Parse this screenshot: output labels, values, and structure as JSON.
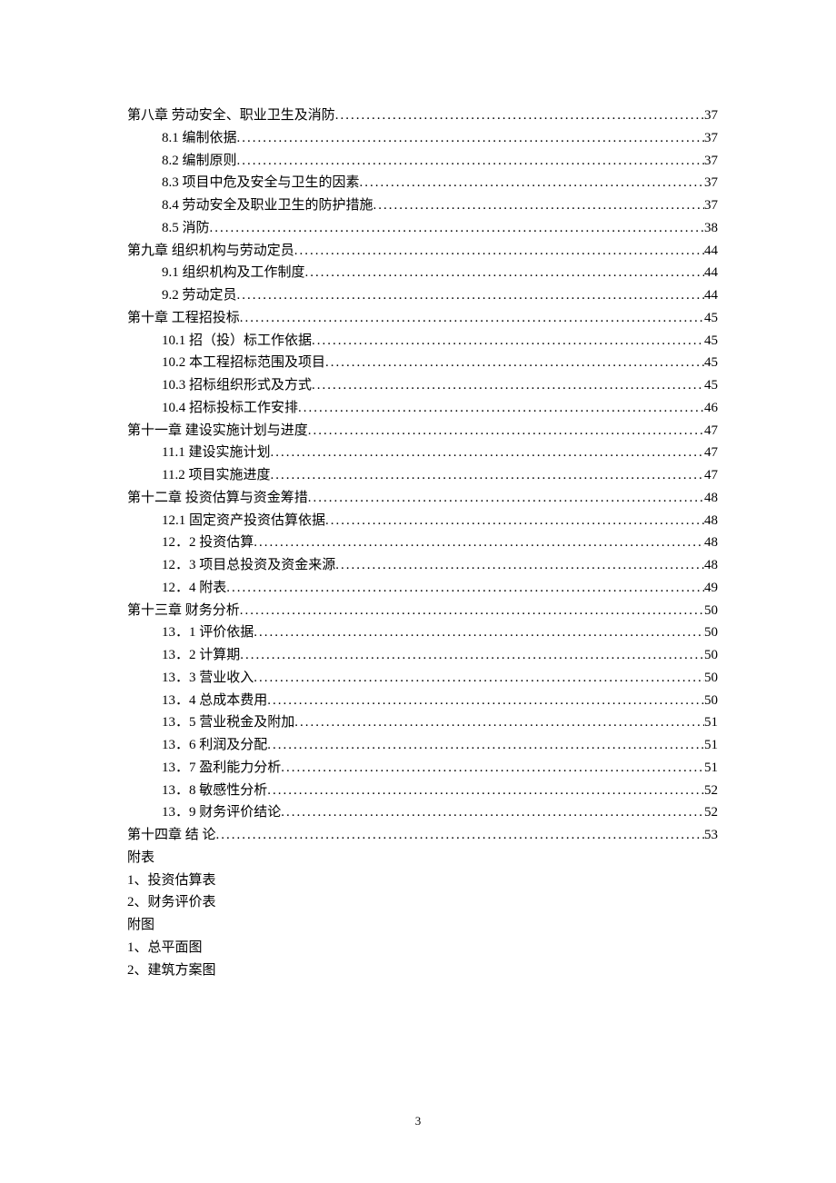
{
  "toc": [
    {
      "indent": false,
      "label": "第八章  劳动安全、职业卫生及消防",
      "page": "37"
    },
    {
      "indent": true,
      "label": "8.1 编制依据",
      "page": "37"
    },
    {
      "indent": true,
      "label": "8.2 编制原则",
      "page": "37"
    },
    {
      "indent": true,
      "label": "8.3 项目中危及安全与卫生的因素",
      "page": "37"
    },
    {
      "indent": true,
      "label": "8.4 劳动安全及职业卫生的防护措施",
      "page": "37"
    },
    {
      "indent": true,
      "label": "8.5  消防",
      "page": "38"
    },
    {
      "indent": false,
      "label": "第九章    组织机构与劳动定员",
      "page": "44"
    },
    {
      "indent": true,
      "label": "9.1  组织机构及工作制度",
      "page": "44"
    },
    {
      "indent": true,
      "label": "9.2  劳动定员",
      "page": "44"
    },
    {
      "indent": false,
      "label": "第十章  工程招投标",
      "page": "45"
    },
    {
      "indent": true,
      "label": "10.1 招（投）标工作依据",
      "page": "45"
    },
    {
      "indent": true,
      "label": "10.2 本工程招标范围及项目",
      "page": "45"
    },
    {
      "indent": true,
      "label": "10.3 招标组织形式及方式",
      "page": "45"
    },
    {
      "indent": true,
      "label": "10.4 招标投标工作安排",
      "page": "46"
    },
    {
      "indent": false,
      "label": "第十一章    建设实施计划与进度",
      "page": "47"
    },
    {
      "indent": true,
      "label": "11.1 建设实施计划",
      "page": "47"
    },
    {
      "indent": true,
      "label": "11.2 项目实施进度",
      "page": "47"
    },
    {
      "indent": false,
      "label": "第十二章    投资估算与资金筹措",
      "page": "48"
    },
    {
      "indent": true,
      "label": "12.1 固定资产投资估算依据",
      "page": "48"
    },
    {
      "indent": true,
      "label": "12．2  投资估算",
      "page": "48"
    },
    {
      "indent": true,
      "label": "12．3 项目总投资及资金来源",
      "page": "48"
    },
    {
      "indent": true,
      "label": "12．4  附表",
      "page": "49"
    },
    {
      "indent": false,
      "label": "第十三章    财务分析",
      "page": "50"
    },
    {
      "indent": true,
      "label": "13．1 评价依据",
      "page": "50"
    },
    {
      "indent": true,
      "label": "13．2 计算期",
      "page": "50"
    },
    {
      "indent": true,
      "label": "13．3  营业收入",
      "page": "50"
    },
    {
      "indent": true,
      "label": "13．4 总成本费用",
      "page": "50"
    },
    {
      "indent": true,
      "label": "13．5 营业税金及附加",
      "page": "51"
    },
    {
      "indent": true,
      "label": "13．6 利润及分配",
      "page": ".51"
    },
    {
      "indent": true,
      "label": "13．7  盈利能力分析",
      "page": "51"
    },
    {
      "indent": true,
      "label": "13．8 敏感性分析",
      "page": "52"
    },
    {
      "indent": true,
      "label": "13．9 财务评价结论",
      "page": "52"
    },
    {
      "indent": false,
      "label": "第十四章 结          论",
      "page": "53"
    }
  ],
  "appendix": [
    "附表",
    "1、投资估算表",
    "2、财务评价表",
    "附图",
    "1、总平面图",
    "2、建筑方案图"
  ],
  "pageNumber": "3"
}
